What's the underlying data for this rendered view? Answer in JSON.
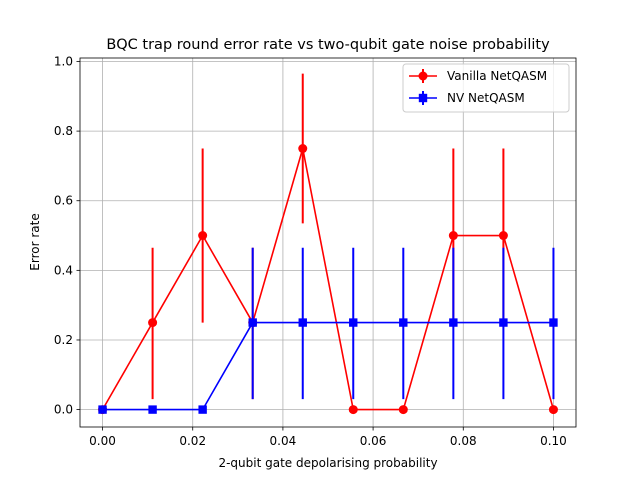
{
  "chart_data": {
    "type": "line",
    "title": "BQC trap round error rate vs two-qubit gate noise probability",
    "xlabel": "2-qubit gate depolarising probability",
    "ylabel": "Error rate",
    "xlim": [
      -0.005,
      0.105
    ],
    "ylim": [
      -0.05,
      1.01
    ],
    "xticks": [
      0.0,
      0.02,
      0.04,
      0.06,
      0.08,
      0.1
    ],
    "xtick_labels": [
      "0.00",
      "0.02",
      "0.04",
      "0.06",
      "0.08",
      "0.10"
    ],
    "yticks": [
      0.0,
      0.2,
      0.4,
      0.6,
      0.8,
      1.0
    ],
    "ytick_labels": [
      "0.0",
      "0.2",
      "0.4",
      "0.6",
      "0.8",
      "1.0"
    ],
    "grid": true,
    "legend_position": "top-right",
    "x": [
      0.0,
      0.0111,
      0.0222,
      0.0333,
      0.0444,
      0.0556,
      0.0667,
      0.0778,
      0.0889,
      0.1
    ],
    "series": [
      {
        "name": "Vanilla NetQASM",
        "color": "#ff0000",
        "marker": "circle",
        "values": [
          0.0,
          0.25,
          0.5,
          0.25,
          0.75,
          0.0,
          0.0,
          0.5,
          0.5,
          0.0
        ],
        "err_low": [
          0.0,
          0.03,
          0.25,
          0.03,
          0.535,
          0.0,
          0.0,
          0.25,
          0.25,
          0.0
        ],
        "err_high": [
          0.0,
          0.465,
          0.75,
          0.465,
          0.965,
          0.0,
          0.0,
          0.75,
          0.75,
          0.0
        ]
      },
      {
        "name": "NV NetQASM",
        "color": "#0000ff",
        "marker": "square",
        "values": [
          0.0,
          0.0,
          0.0,
          0.25,
          0.25,
          0.25,
          0.25,
          0.25,
          0.25,
          0.25
        ],
        "err_low": [
          0.0,
          0.0,
          0.0,
          0.03,
          0.03,
          0.03,
          0.03,
          0.03,
          0.03,
          0.03
        ],
        "err_high": [
          0.0,
          0.0,
          0.0,
          0.465,
          0.465,
          0.465,
          0.465,
          0.465,
          0.465,
          0.465
        ]
      }
    ]
  }
}
